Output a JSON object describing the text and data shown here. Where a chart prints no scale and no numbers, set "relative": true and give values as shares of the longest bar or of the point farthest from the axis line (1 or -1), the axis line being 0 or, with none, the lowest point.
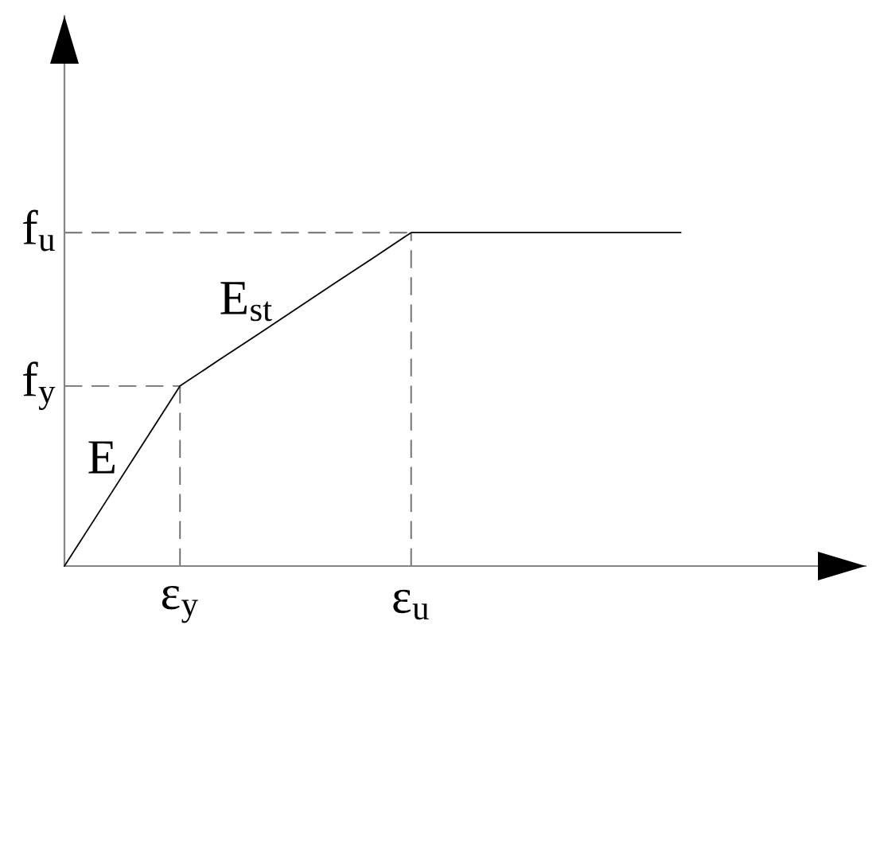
{
  "chart_data": {
    "type": "line",
    "relative": true,
    "categories": [
      null,
      null,
      null,
      "ε$_{y}$",
      null,
      null,
      null,
      null,
      null,
      "ε$_{u}$",
      null,
      null,
      null,
      null,
      null,
      null,
      null
    ],
    "series": [
      {
        "color": "#000000",
        "values": [
          0,
          0.18,
          0.36,
          0.54,
          0.617,
          0.693,
          0.77,
          0.847,
          0.923,
          1,
          1,
          1,
          1,
          1,
          1,
          1,
          1
        ]
      }
    ],
    "ref_lines": [
      {
        "axis": "y",
        "value": 1,
        "label": "f$_{u}$",
        "color": "#707070",
        "line_style": "dashed"
      },
      {
        "axis": "y",
        "value": 0.54,
        "label": "f$_{y}$",
        "color": "#707070",
        "line_style": "dashed"
      },
      {
        "axis": "x",
        "value": "ε$_{y}$",
        "color": "#707070",
        "line_style": "dashed"
      },
      {
        "axis": "x",
        "value": "ε$_{u}$",
        "color": "#707070",
        "line_style": "dashed"
      }
    ],
    "annotations": [
      "E",
      "E$_{st}$"
    ],
    "line_style": "solid",
    "marker": "none"
  }
}
